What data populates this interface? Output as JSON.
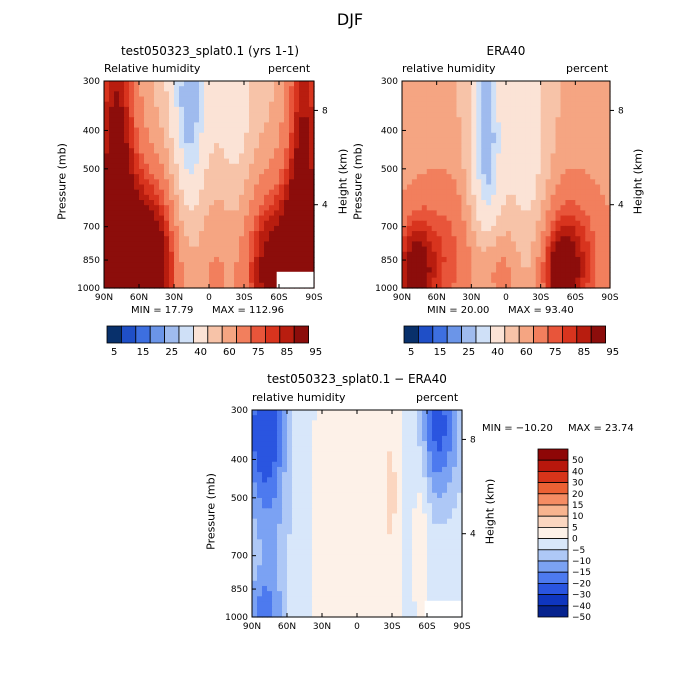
{
  "page": {
    "title": "DJF"
  },
  "colorbars": {
    "full": {
      "colors": [
        "#08306b",
        "#1f4fc7",
        "#3d6fe0",
        "#6b95e8",
        "#9fbbee",
        "#cfe0f7",
        "#fbe3d6",
        "#f7c3a8",
        "#f5a582",
        "#f27f5d",
        "#e8553a",
        "#d8341e",
        "#b81d0f",
        "#8c0d0b"
      ],
      "labels": [
        "5",
        "15",
        "25",
        "40",
        "60",
        "75",
        "85",
        "95"
      ]
    },
    "diff": {
      "colors": [
        "#06238e",
        "#0f36bf",
        "#2a55e0",
        "#4d7aef",
        "#7ba2f3",
        "#aec8f6",
        "#d8e7fa",
        "#fdf1e8",
        "#fbd6c0",
        "#f8b48f",
        "#f58c63",
        "#ec6134",
        "#d7341a",
        "#b8170c",
        "#8e0606"
      ],
      "labels": [
        "50",
        "40",
        "30",
        "20",
        "15",
        "10",
        "5",
        "0",
        "−5",
        "−10",
        "−15",
        "−20",
        "−30",
        "−40",
        "−50"
      ]
    }
  },
  "chart_data": [
    {
      "type": "heatmap",
      "title": "test050323_splat0.1 (yrs 1-1)",
      "subtitle_left": "Relative humidity",
      "subtitle_right": "percent",
      "ylabel": "Pressure (mb)",
      "ylabel_right": "Height (km)",
      "x_ticks": [
        "90N",
        "60N",
        "30N",
        "0",
        "30S",
        "60S",
        "90S"
      ],
      "x_values": [
        90,
        60,
        30,
        0,
        -30,
        -60,
        -90
      ],
      "y_ticks": [
        "300",
        "400",
        "500",
        "700",
        "850",
        "1000"
      ],
      "y_values": [
        300,
        400,
        500,
        700,
        850,
        1000
      ],
      "y_scale": "log",
      "right_ticks": [
        "8",
        "4"
      ],
      "right_tick_pressure": [
        356,
        616
      ],
      "min_label": "MIN = 17.79",
      "max_label": "MAX = 112.96",
      "min": 17.79,
      "max": 112.96,
      "colorbar": "full",
      "base_value": 45,
      "features": [
        {
          "lat": 17,
          "p": 520,
          "sx": 14,
          "sl": 0.9,
          "a": -36
        },
        {
          "lat": -22,
          "p": 560,
          "sx": 13,
          "sl": 1.0,
          "a": -20
        },
        {
          "lat": 2,
          "p": 620,
          "sx": 30,
          "sl": 1.2,
          "a": 8
        },
        {
          "lat": 80,
          "p": 560,
          "sx": 14,
          "sl": 1.4,
          "a": 42
        },
        {
          "lat": -82,
          "p": 500,
          "sx": 12,
          "sl": 1.2,
          "a": 40
        },
        {
          "lat": 30,
          "p": 910,
          "sx": 45,
          "sl": 0.45,
          "a": 30
        },
        {
          "lat": -55,
          "p": 900,
          "sx": 22,
          "sl": 0.4,
          "a": 38
        },
        {
          "lat": 78,
          "p": 960,
          "sx": 10,
          "sl": 0.2,
          "a": 50
        },
        {
          "lat": 45,
          "p": 820,
          "sx": 15,
          "sl": 0.4,
          "a": 20
        }
      ],
      "mask": {
        "lat_from": -58,
        "lat_to": -90,
        "p_from": 910,
        "p_to": 1000
      }
    },
    {
      "type": "heatmap",
      "title": "ERA40",
      "subtitle_left": "relative humidity",
      "subtitle_right": "percent",
      "ylabel": "Pressure (mb)",
      "ylabel_right": "Height (km)",
      "x_ticks": [
        "90N",
        "60N",
        "30N",
        "0",
        "30S",
        "60S",
        "90S"
      ],
      "x_values": [
        90,
        60,
        30,
        0,
        -30,
        -60,
        -90
      ],
      "y_ticks": [
        "300",
        "400",
        "500",
        "700",
        "850",
        "1000"
      ],
      "y_values": [
        300,
        400,
        500,
        700,
        850,
        1000
      ],
      "y_scale": "log",
      "right_ticks": [
        "8",
        "4"
      ],
      "right_tick_pressure": [
        356,
        616
      ],
      "min_label": "MIN = 20.00",
      "max_label": "MAX = 93.40",
      "min": 20.0,
      "max": 93.4,
      "colorbar": "full",
      "base_value": 52,
      "features": [
        {
          "lat": 17,
          "p": 480,
          "sx": 12,
          "sl": 0.9,
          "a": -34
        },
        {
          "lat": -20,
          "p": 560,
          "sx": 14,
          "sl": 1.0,
          "a": -22
        },
        {
          "lat": 2,
          "p": 650,
          "sx": 28,
          "sl": 1.0,
          "a": 4
        },
        {
          "lat": 55,
          "p": 820,
          "sx": 25,
          "sl": 0.35,
          "a": 20
        },
        {
          "lat": -60,
          "p": 820,
          "sx": 25,
          "sl": 0.35,
          "a": 20
        },
        {
          "lat": 80,
          "p": 950,
          "sx": 12,
          "sl": 0.25,
          "a": 30
        },
        {
          "lat": 10,
          "p": 920,
          "sx": 15,
          "sl": 0.2,
          "a": 25
        },
        {
          "lat": -45,
          "p": 930,
          "sx": 15,
          "sl": 0.25,
          "a": 28
        }
      ]
    },
    {
      "type": "heatmap",
      "title": "test050323_splat0.1 − ERA40",
      "subtitle_left": "relative humidity",
      "subtitle_right": "percent",
      "ylabel": "Pressure (mb)",
      "ylabel_right": "Height (km)",
      "x_ticks": [
        "90N",
        "60N",
        "30N",
        "0",
        "30S",
        "60S",
        "90S"
      ],
      "x_values": [
        90,
        60,
        30,
        0,
        -30,
        -60,
        -90
      ],
      "y_ticks": [
        "300",
        "400",
        "500",
        "700",
        "850",
        "1000"
      ],
      "y_values": [
        300,
        400,
        500,
        700,
        850,
        1000
      ],
      "y_scale": "log",
      "right_ticks": [
        "8",
        "4"
      ],
      "right_tick_pressure": [
        356,
        616
      ],
      "min_label": "MIN = −10.20",
      "max_label": "MAX = 23.74",
      "min": -10.2,
      "max": 23.74,
      "colorbar": "diff",
      "base_value": 2,
      "features": [
        {
          "lat": 10,
          "p": 600,
          "sx": 20,
          "sl": 1.0,
          "a": -6
        },
        {
          "lat": -30,
          "p": 480,
          "sx": 6,
          "sl": 0.6,
          "a": -7
        },
        {
          "lat": -55,
          "p": 560,
          "sx": 5,
          "sl": 0.5,
          "a": -6
        },
        {
          "lat": 80,
          "p": 330,
          "sx": 12,
          "sl": 0.3,
          "a": 20
        },
        {
          "lat": -70,
          "p": 330,
          "sx": 12,
          "sl": 0.3,
          "a": 20
        },
        {
          "lat": 75,
          "p": 600,
          "sx": 12,
          "sl": 0.6,
          "a": 8
        },
        {
          "lat": 80,
          "p": 970,
          "sx": 10,
          "sl": 0.15,
          "a": 10
        }
      ],
      "mask": {
        "lat_from": -58,
        "lat_to": -90,
        "p_from": 910,
        "p_to": 1000
      }
    }
  ]
}
